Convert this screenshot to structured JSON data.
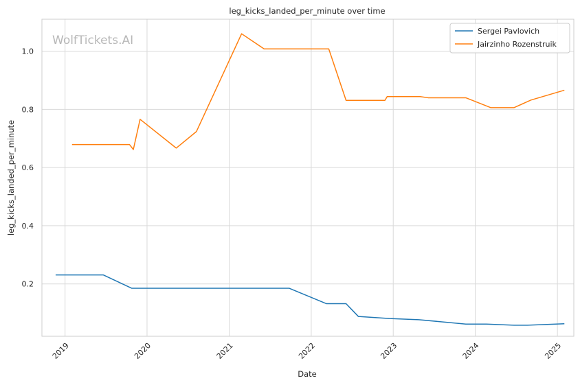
{
  "chart_data": {
    "type": "line",
    "title": "leg_kicks_landed_per_minute over time",
    "xlabel": "Date",
    "ylabel": "leg_kicks_landed_per_minute",
    "watermark": "WolfTickets.AI",
    "xlim": [
      "2018-09-20",
      "2025-03-15"
    ],
    "ylim": [
      0.02,
      1.11
    ],
    "x_ticks": [
      {
        "date": "2019-01-01",
        "label": "2019"
      },
      {
        "date": "2020-01-01",
        "label": "2020"
      },
      {
        "date": "2021-01-01",
        "label": "2021"
      },
      {
        "date": "2022-01-01",
        "label": "2022"
      },
      {
        "date": "2023-01-01",
        "label": "2023"
      },
      {
        "date": "2024-01-01",
        "label": "2024"
      },
      {
        "date": "2025-01-01",
        "label": "2025"
      }
    ],
    "y_ticks": [
      {
        "value": 0.2,
        "label": "0.2"
      },
      {
        "value": 0.4,
        "label": "0.4"
      },
      {
        "value": 0.6,
        "label": "0.6"
      },
      {
        "value": 0.8,
        "label": "0.8"
      },
      {
        "value": 1.0,
        "label": "1.0"
      }
    ],
    "grid": true,
    "legend_position": "top-right",
    "series": [
      {
        "name": "Sergei Pavlovich",
        "color": "#1f77b4",
        "points": [
          {
            "x": "2018-11-20",
            "y": 0.231
          },
          {
            "x": "2019-06-20",
            "y": 0.231
          },
          {
            "x": "2019-10-25",
            "y": 0.185
          },
          {
            "x": "2021-09-25",
            "y": 0.185
          },
          {
            "x": "2022-03-10",
            "y": 0.132
          },
          {
            "x": "2022-06-05",
            "y": 0.132
          },
          {
            "x": "2022-07-30",
            "y": 0.088
          },
          {
            "x": "2022-12-15",
            "y": 0.081
          },
          {
            "x": "2023-04-25",
            "y": 0.077
          },
          {
            "x": "2023-11-20",
            "y": 0.062
          },
          {
            "x": "2024-02-20",
            "y": 0.062
          },
          {
            "x": "2024-06-22",
            "y": 0.058
          },
          {
            "x": "2024-08-20",
            "y": 0.058
          },
          {
            "x": "2025-02-01",
            "y": 0.063
          }
        ]
      },
      {
        "name": "Jairzinho Rozenstruik",
        "color": "#ff7f0e",
        "points": [
          {
            "x": "2019-02-01",
            "y": 0.679
          },
          {
            "x": "2019-10-15",
            "y": 0.679
          },
          {
            "x": "2019-11-01",
            "y": 0.662
          },
          {
            "x": "2019-12-01",
            "y": 0.766
          },
          {
            "x": "2020-05-10",
            "y": 0.667
          },
          {
            "x": "2020-08-08",
            "y": 0.724
          },
          {
            "x": "2021-02-25",
            "y": 1.06
          },
          {
            "x": "2021-06-05",
            "y": 1.008
          },
          {
            "x": "2022-03-20",
            "y": 1.008
          },
          {
            "x": "2022-06-05",
            "y": 0.831
          },
          {
            "x": "2022-11-25",
            "y": 0.831
          },
          {
            "x": "2022-12-05",
            "y": 0.844
          },
          {
            "x": "2023-05-01",
            "y": 0.844
          },
          {
            "x": "2023-06-05",
            "y": 0.84
          },
          {
            "x": "2023-11-20",
            "y": 0.84
          },
          {
            "x": "2024-03-10",
            "y": 0.806
          },
          {
            "x": "2024-06-22",
            "y": 0.806
          },
          {
            "x": "2024-09-05",
            "y": 0.832
          },
          {
            "x": "2025-02-01",
            "y": 0.866
          }
        ]
      }
    ]
  }
}
